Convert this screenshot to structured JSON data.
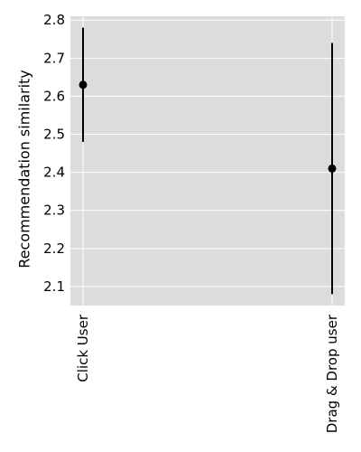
{
  "chart_data": {
    "type": "scatter",
    "title": "",
    "xlabel": "",
    "ylabel": "Recommendation similarity",
    "categories": [
      "Click User",
      "Drag & Drop user"
    ],
    "series": [
      {
        "values": [
          2.63,
          2.41
        ],
        "error_low": [
          2.48,
          2.08
        ],
        "error_high": [
          2.78,
          2.74
        ]
      }
    ],
    "ylim": [
      2.05,
      2.81
    ],
    "yticks": [
      "2.1",
      "2.2",
      "2.3",
      "2.4",
      "2.5",
      "2.6",
      "2.7",
      "2.8"
    ],
    "grid": true,
    "legend": "none",
    "colors": {
      "plot_background": "#dcdcdc",
      "grid": "#ffffff",
      "marker": "#000000"
    }
  }
}
